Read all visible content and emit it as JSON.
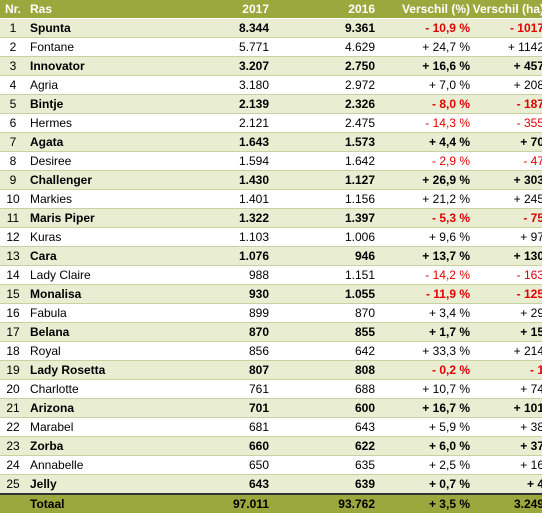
{
  "header": {
    "nr": "Nr.",
    "ras": "Ras",
    "y2017": "2017",
    "y2016": "2016",
    "vpct": "Verschil (%)",
    "vha": "Verschil (ha)"
  },
  "rows": [
    {
      "nr": "1",
      "ras": "Spunta",
      "y2017": "8.344",
      "y2016": "9.361",
      "vpct": "- 10,9 %",
      "vha": "- 1017",
      "neg": true
    },
    {
      "nr": "2",
      "ras": "Fontane",
      "y2017": "5.771",
      "y2016": "4.629",
      "vpct": "+ 24,7 %",
      "vha": "+ 1142",
      "neg": false
    },
    {
      "nr": "3",
      "ras": "Innovator",
      "y2017": "3.207",
      "y2016": "2.750",
      "vpct": "+ 16,6 %",
      "vha": "+ 457",
      "neg": false
    },
    {
      "nr": "4",
      "ras": "Agria",
      "y2017": "3.180",
      "y2016": "2.972",
      "vpct": "+ 7,0 %",
      "vha": "+ 208",
      "neg": false
    },
    {
      "nr": "5",
      "ras": "Bintje",
      "y2017": "2.139",
      "y2016": "2.326",
      "vpct": "- 8,0 %",
      "vha": "- 187",
      "neg": true
    },
    {
      "nr": "6",
      "ras": "Hermes",
      "y2017": "2.121",
      "y2016": "2.475",
      "vpct": "- 14,3 %",
      "vha": "- 355",
      "neg": true
    },
    {
      "nr": "7",
      "ras": "Agata",
      "y2017": "1.643",
      "y2016": "1.573",
      "vpct": "+ 4,4 %",
      "vha": "+ 70",
      "neg": false
    },
    {
      "nr": "8",
      "ras": "Desiree",
      "y2017": "1.594",
      "y2016": "1.642",
      "vpct": "- 2,9 %",
      "vha": "- 47",
      "neg": true
    },
    {
      "nr": "9",
      "ras": "Challenger",
      "y2017": "1.430",
      "y2016": "1.127",
      "vpct": "+ 26,9 %",
      "vha": "+ 303",
      "neg": false
    },
    {
      "nr": "10",
      "ras": "Markies",
      "y2017": "1.401",
      "y2016": "1.156",
      "vpct": "+ 21,2 %",
      "vha": "+ 245",
      "neg": false
    },
    {
      "nr": "11",
      "ras": "Maris Piper",
      "y2017": "1.322",
      "y2016": "1.397",
      "vpct": "- 5,3 %",
      "vha": "- 75",
      "neg": true
    },
    {
      "nr": "12",
      "ras": "Kuras",
      "y2017": "1.103",
      "y2016": "1.006",
      "vpct": "+ 9,6 %",
      "vha": "+ 97",
      "neg": false
    },
    {
      "nr": "13",
      "ras": "Cara",
      "y2017": "1.076",
      "y2016": "946",
      "vpct": "+ 13,7 %",
      "vha": "+ 130",
      "neg": false
    },
    {
      "nr": "14",
      "ras": "Lady Claire",
      "y2017": "988",
      "y2016": "1.151",
      "vpct": "- 14,2 %",
      "vha": "- 163",
      "neg": true
    },
    {
      "nr": "15",
      "ras": "Monalisa",
      "y2017": "930",
      "y2016": "1.055",
      "vpct": "- 11,9 %",
      "vha": "- 125",
      "neg": true
    },
    {
      "nr": "16",
      "ras": "Fabula",
      "y2017": "899",
      "y2016": "870",
      "vpct": "+ 3,4 %",
      "vha": "+ 29",
      "neg": false
    },
    {
      "nr": "17",
      "ras": "Belana",
      "y2017": "870",
      "y2016": "855",
      "vpct": "+ 1,7 %",
      "vha": "+ 15",
      "neg": false
    },
    {
      "nr": "18",
      "ras": "Royal",
      "y2017": "856",
      "y2016": "642",
      "vpct": "+ 33,3 %",
      "vha": "+ 214",
      "neg": false
    },
    {
      "nr": "19",
      "ras": "Lady Rosetta",
      "y2017": "807",
      "y2016": "808",
      "vpct": "- 0,2 %",
      "vha": "- 1",
      "neg": true
    },
    {
      "nr": "20",
      "ras": "Charlotte",
      "y2017": "761",
      "y2016": "688",
      "vpct": "+ 10,7 %",
      "vha": "+ 74",
      "neg": false
    },
    {
      "nr": "21",
      "ras": "Arizona",
      "y2017": "701",
      "y2016": "600",
      "vpct": "+ 16,7 %",
      "vha": "+ 101",
      "neg": false
    },
    {
      "nr": "22",
      "ras": "Marabel",
      "y2017": "681",
      "y2016": "643",
      "vpct": "+ 5,9 %",
      "vha": "+ 38",
      "neg": false
    },
    {
      "nr": "23",
      "ras": "Zorba",
      "y2017": "660",
      "y2016": "622",
      "vpct": "+ 6,0 %",
      "vha": "+ 37",
      "neg": false
    },
    {
      "nr": "24",
      "ras": "Annabelle",
      "y2017": "650",
      "y2016": "635",
      "vpct": "+ 2,5 %",
      "vha": "+ 16",
      "neg": false
    },
    {
      "nr": "25",
      "ras": "Jelly",
      "y2017": "643",
      "y2016": "639",
      "vpct": "+ 0,7 %",
      "vha": "+ 4",
      "neg": false
    }
  ],
  "total": {
    "label": "Totaal",
    "y2017": "97.011",
    "y2016": "93.762",
    "vpct": "+ 3,5 %",
    "vha": "3.249"
  },
  "colors": {
    "header_bg": "#9aa83e",
    "odd_row_bg": "#e9eed2",
    "negative": "#e00000"
  }
}
